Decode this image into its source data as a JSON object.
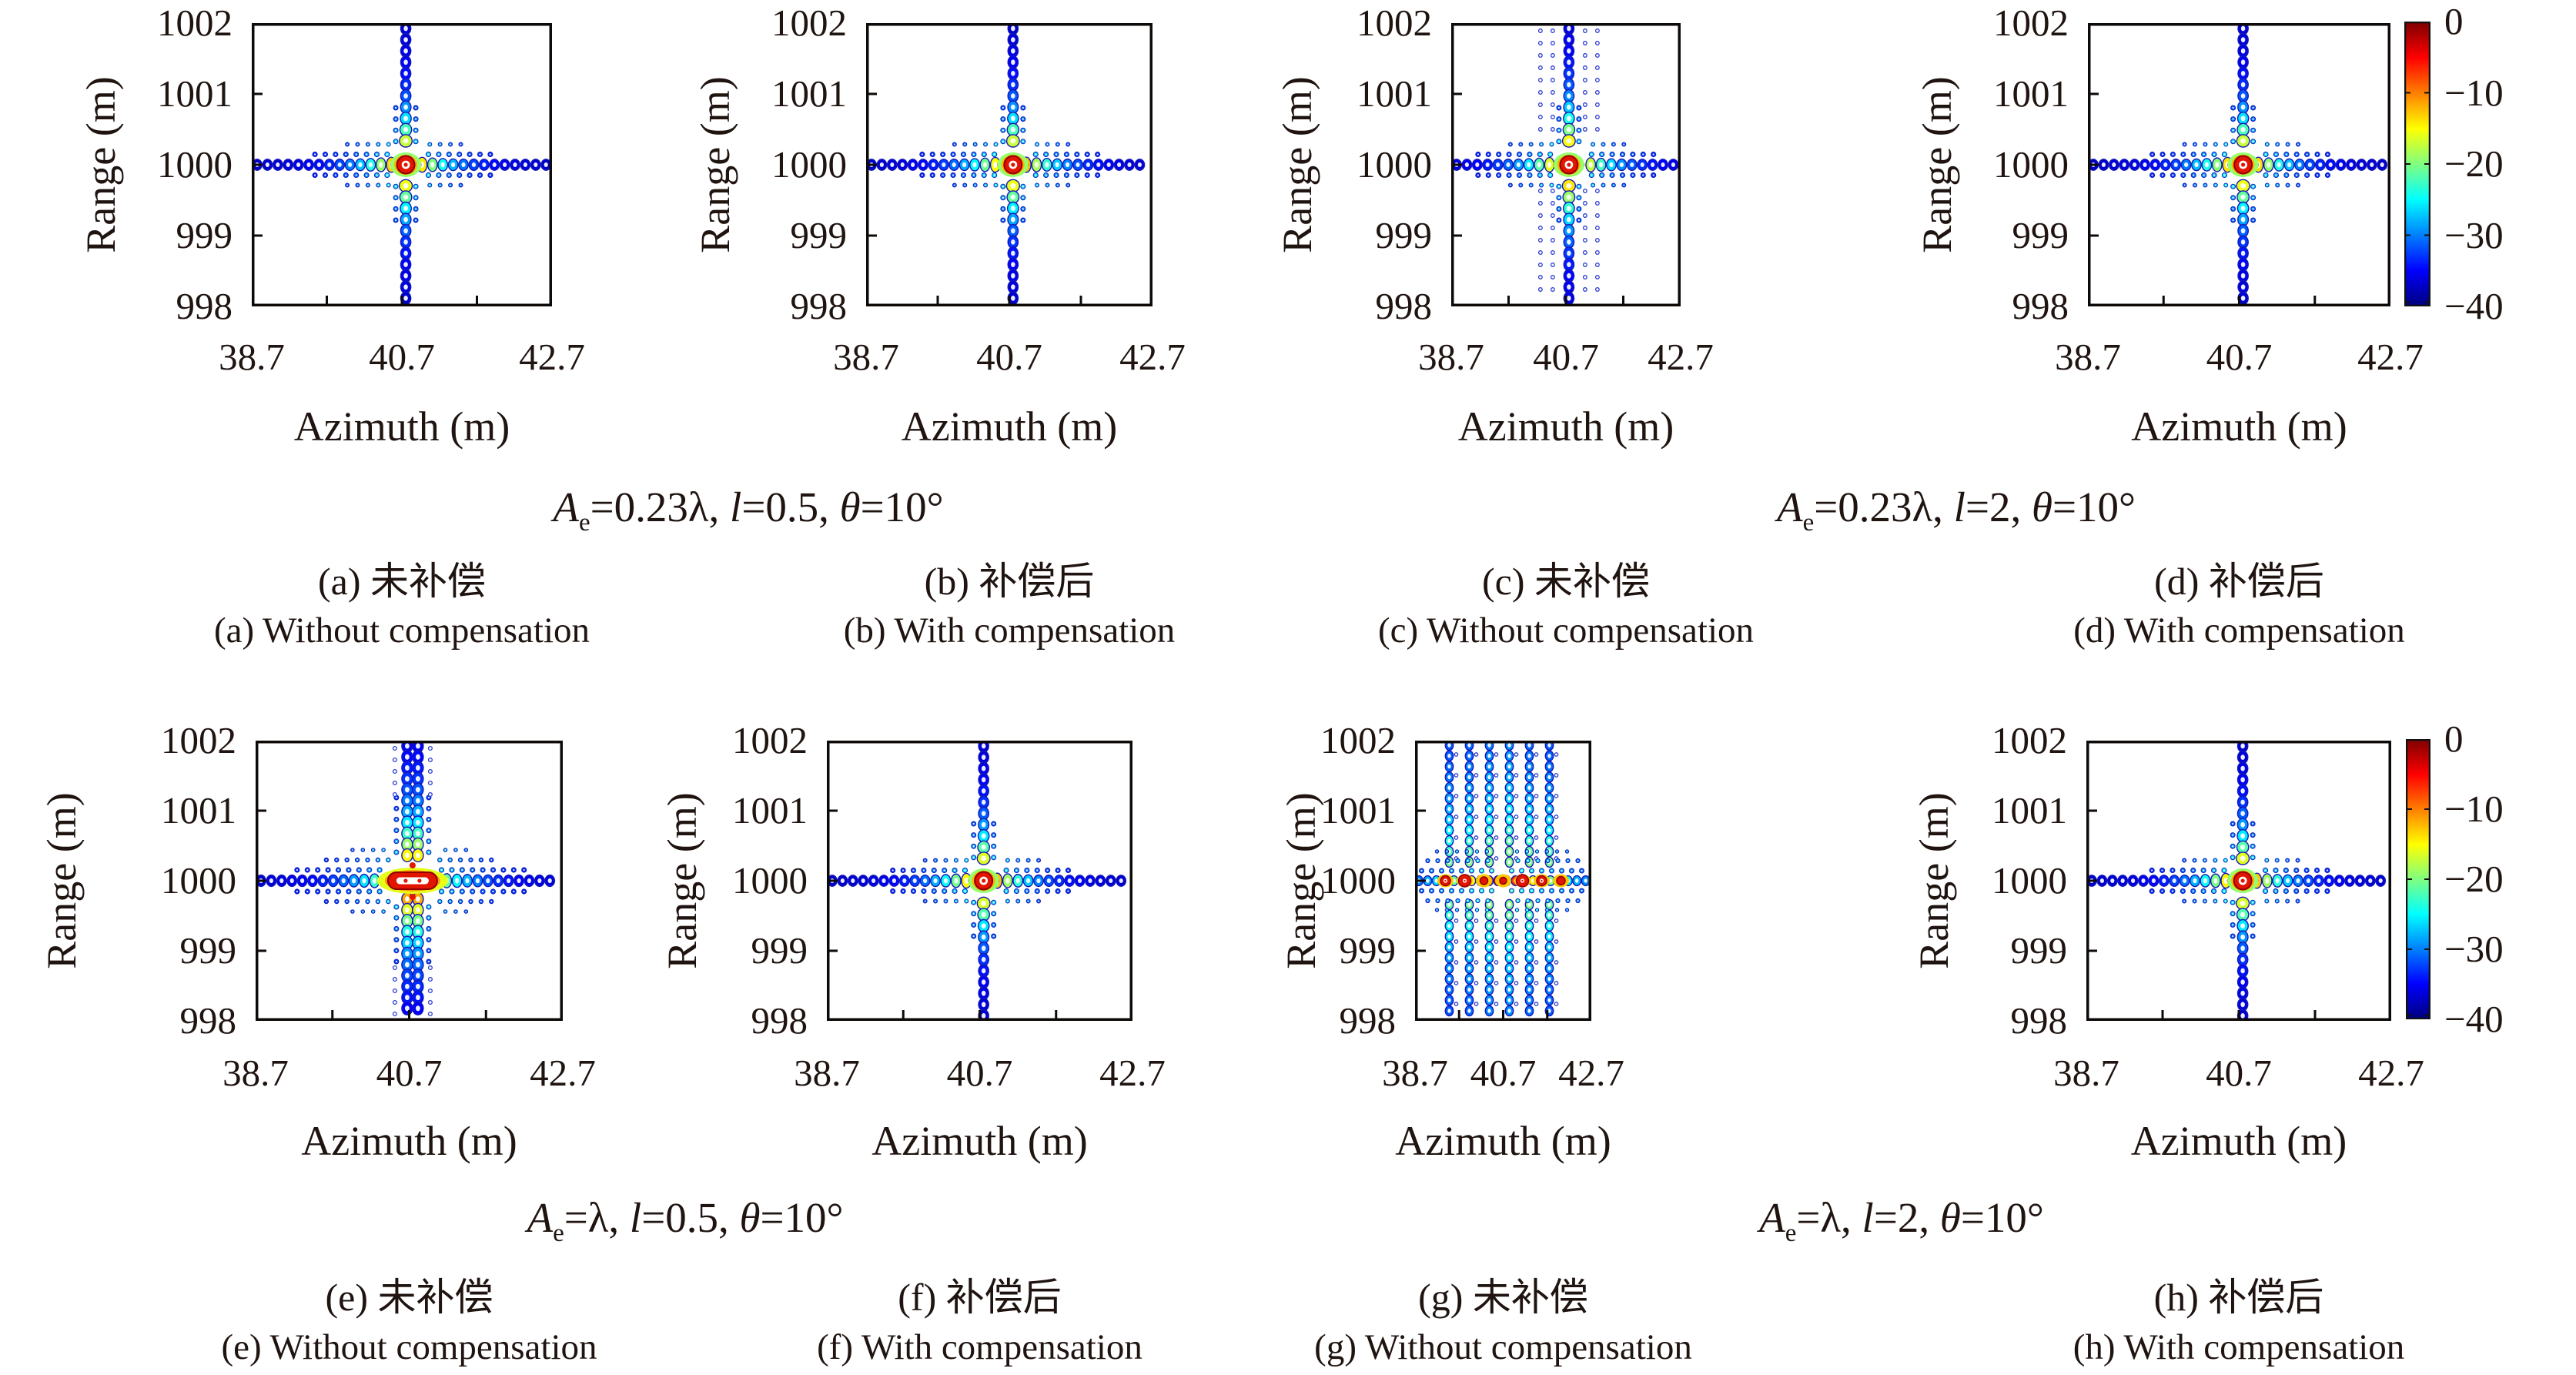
{
  "figure": {
    "kind": "contour-figure",
    "rows": 2,
    "columns": 4
  },
  "chart_data": {
    "type": "contour",
    "xlabel": "Azimuth (m)",
    "ylabel": "Range (m)",
    "xtick_labels": [
      "38.7",
      "40.7",
      "42.7"
    ],
    "ytick_labels": [
      "1002",
      "1001",
      "1000",
      "999",
      "998"
    ],
    "xlim": [
      38.7,
      42.7
    ],
    "ylim": [
      998,
      1002
    ],
    "peak_location": {
      "azimuth_m": 40.7,
      "range_m": 1000
    },
    "value_range_dB": [
      -40,
      0
    ],
    "colorbar": {
      "colormap": "jet",
      "ticks": [
        0,
        -10,
        -20,
        -30,
        -40
      ],
      "labels": [
        "0",
        "−10",
        "−20",
        "−30",
        "−40"
      ]
    },
    "panels": [
      {
        "id": "a",
        "pattern": "focused",
        "caption_cn": "(a) 未补偿",
        "caption_en": "(a) Without compensation"
      },
      {
        "id": "b",
        "pattern": "focused",
        "caption_cn": "(b) 补偿后",
        "caption_en": "(b) With compensation"
      },
      {
        "id": "c",
        "pattern": "focused-sidelobes",
        "caption_cn": "(c) 未补偿",
        "caption_en": "(c) Without compensation"
      },
      {
        "id": "d",
        "pattern": "focused",
        "caption_cn": "(d) 补偿后",
        "caption_en": "(d) With compensation"
      },
      {
        "id": "e",
        "pattern": "defocused-moderate",
        "caption_cn": "(e) 未补偿",
        "caption_en": "(e) Without compensation"
      },
      {
        "id": "f",
        "pattern": "focused",
        "caption_cn": "(f) 补偿后",
        "caption_en": "(f) With compensation"
      },
      {
        "id": "g",
        "pattern": "defocused-strong",
        "caption_cn": "(g) 未补偿",
        "caption_en": "(g) Without compensation"
      },
      {
        "id": "h",
        "pattern": "focused",
        "caption_cn": "(h) 补偿后",
        "caption_en": "(h) With compensation"
      }
    ],
    "group_conditions": [
      {
        "plots": [
          "a",
          "b"
        ],
        "A": "A",
        "sub": "e",
        "seg1": "=0.23λ, ",
        "l": "l",
        "seg2": "=0.5, ",
        "theta": "θ",
        "seg3": "=10°",
        "text": "Ae=0.23λ, l=0.5, θ=10°"
      },
      {
        "plots": [
          "c",
          "d"
        ],
        "A": "A",
        "sub": "e",
        "seg1": "=0.23λ, ",
        "l": "l",
        "seg2": "=2, ",
        "theta": "θ",
        "seg3": "=10°",
        "text": "Ae=0.23λ, l=2, θ=10°"
      },
      {
        "plots": [
          "e",
          "f"
        ],
        "A": "A",
        "sub": "e",
        "seg1": "=λ, ",
        "l": "l",
        "seg2": "=0.5, ",
        "theta": "θ",
        "seg3": "=10°",
        "text": "Ae=λ, l=0.5, θ=10°"
      },
      {
        "plots": [
          "g",
          "h"
        ],
        "A": "A",
        "sub": "e",
        "seg1": "=λ, ",
        "l": "l",
        "seg2": "=2, ",
        "theta": "θ",
        "seg3": "=10°",
        "text": "Ae=λ, l=2, θ=10°"
      }
    ]
  }
}
